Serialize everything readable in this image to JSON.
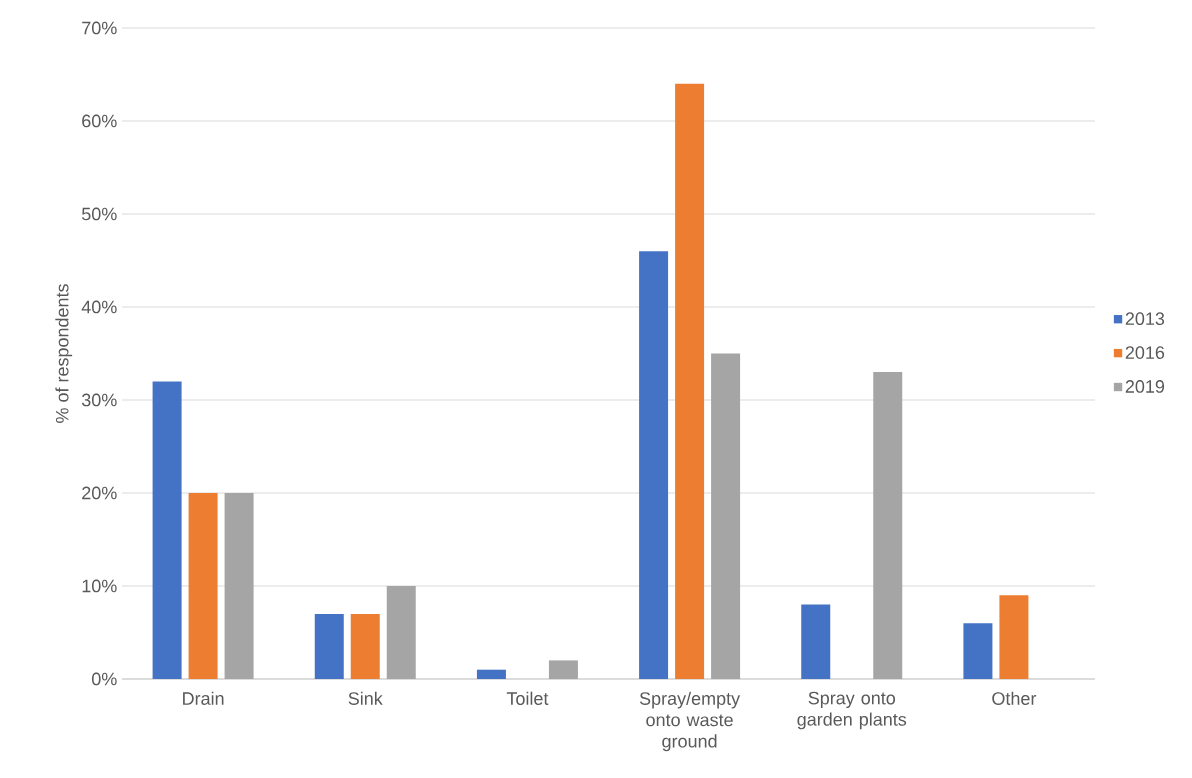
{
  "chart_data": {
    "type": "bar",
    "ylabel": "% of respondents",
    "categories": [
      "Drain",
      "Sink",
      "Toilet",
      "Spray/empty onto waste ground",
      "Spray onto garden plants",
      "Other"
    ],
    "series": [
      {
        "name": "2013",
        "color": "#4472c4",
        "values": [
          32,
          7,
          1,
          46,
          8,
          6
        ]
      },
      {
        "name": "2016",
        "color": "#ed7d31",
        "values": [
          20,
          7,
          null,
          64,
          null,
          9
        ]
      },
      {
        "name": "2019",
        "color": "#a5a5a5",
        "values": [
          20,
          10,
          2,
          35,
          33,
          null
        ]
      }
    ],
    "ylim": [
      0,
      70
    ],
    "yticks": [
      {
        "value": 0,
        "label": "0%"
      },
      {
        "value": 10,
        "label": "10%"
      },
      {
        "value": 20,
        "label": "20%"
      },
      {
        "value": 30,
        "label": "30%"
      },
      {
        "value": 40,
        "label": "40%"
      },
      {
        "value": 50,
        "label": "50%"
      },
      {
        "value": 60,
        "label": "60%"
      },
      {
        "value": 70,
        "label": "70%"
      }
    ],
    "grid": "y",
    "legend": "right"
  }
}
